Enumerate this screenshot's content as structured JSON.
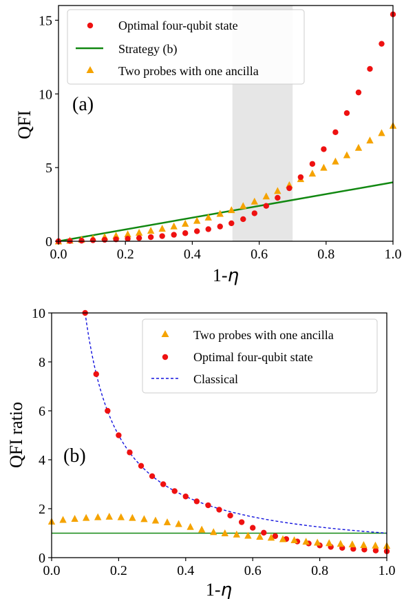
{
  "chart_data": [
    {
      "type": "scatter",
      "panel_label": "(a)",
      "xlabel": "1-η",
      "xlabel_parts": [
        "1-",
        "η"
      ],
      "ylabel": "QFI",
      "xlim": [
        0.0,
        1.0
      ],
      "ylim": [
        0,
        16
      ],
      "xticks": [
        "0.0",
        "0.2",
        "0.4",
        "0.6",
        "0.8",
        "1.0"
      ],
      "xtick_values": [
        0.0,
        0.2,
        0.4,
        0.6,
        0.8,
        1.0
      ],
      "yticks": [
        "0",
        "5",
        "10",
        "15"
      ],
      "ytick_values": [
        0,
        5,
        10,
        15
      ],
      "grid": false,
      "legend_position": "top-left",
      "shaded_region": {
        "x": [
          0.52,
          0.7
        ],
        "color": "#e6e6e6"
      },
      "series": [
        {
          "name": "Optimal four-qubit state",
          "marker": "circle",
          "color": "#ee1111",
          "x": [
            0.0,
            0.034,
            0.069,
            0.103,
            0.138,
            0.172,
            0.207,
            0.241,
            0.276,
            0.31,
            0.345,
            0.379,
            0.414,
            0.448,
            0.483,
            0.517,
            0.552,
            0.586,
            0.621,
            0.655,
            0.69,
            0.724,
            0.759,
            0.793,
            0.828,
            0.862,
            0.897,
            0.931,
            0.966,
            1.0
          ],
          "y": [
            0.0,
            0.02,
            0.04,
            0.07,
            0.1,
            0.13,
            0.17,
            0.22,
            0.28,
            0.35,
            0.44,
            0.55,
            0.68,
            0.82,
            1.0,
            1.22,
            1.5,
            1.9,
            2.4,
            2.95,
            3.6,
            4.35,
            5.25,
            6.25,
            7.4,
            8.7,
            10.1,
            11.7,
            13.4,
            15.4
          ]
        },
        {
          "name": "Strategy (b)",
          "marker": "line",
          "color": "#118811",
          "x": [
            0.0,
            1.0
          ],
          "y": [
            0.0,
            4.0
          ]
        },
        {
          "name": "Two probes with one ancilla",
          "marker": "triangle",
          "color": "#f5a300",
          "x": [
            0.0,
            0.034,
            0.069,
            0.103,
            0.138,
            0.172,
            0.207,
            0.241,
            0.276,
            0.31,
            0.345,
            0.379,
            0.414,
            0.448,
            0.483,
            0.517,
            0.552,
            0.586,
            0.621,
            0.655,
            0.69,
            0.724,
            0.759,
            0.793,
            0.828,
            0.862,
            0.897,
            0.931,
            0.966,
            1.0
          ],
          "y": [
            0.0,
            0.05,
            0.12,
            0.2,
            0.29,
            0.38,
            0.48,
            0.59,
            0.72,
            0.86,
            1.02,
            1.2,
            1.4,
            1.62,
            1.87,
            2.12,
            2.4,
            2.7,
            3.05,
            3.42,
            3.82,
            4.23,
            4.6,
            5.0,
            5.42,
            5.85,
            6.35,
            6.85,
            7.35,
            7.85
          ]
        }
      ]
    },
    {
      "type": "scatter",
      "panel_label": "(b)",
      "xlabel": "1-η",
      "xlabel_parts": [
        "1-",
        "η"
      ],
      "ylabel": "QFI ratio",
      "xlim": [
        0.0,
        1.0
      ],
      "ylim": [
        0,
        10
      ],
      "xticks": [
        "0.0",
        "0.2",
        "0.4",
        "0.6",
        "0.8",
        "1.0"
      ],
      "xtick_values": [
        0.0,
        0.2,
        0.4,
        0.6,
        0.8,
        1.0
      ],
      "yticks": [
        "0",
        "2",
        "4",
        "6",
        "8",
        "10"
      ],
      "ytick_values": [
        0,
        2,
        4,
        6,
        8,
        10
      ],
      "grid": false,
      "legend_position": "top-right",
      "reference_line": {
        "y": 1.0,
        "color": "#118811"
      },
      "series": [
        {
          "name": "Two probes with one ancilla",
          "marker": "triangle",
          "color": "#f5a300",
          "x": [
            0.0,
            0.034,
            0.069,
            0.103,
            0.138,
            0.172,
            0.207,
            0.241,
            0.276,
            0.31,
            0.345,
            0.379,
            0.414,
            0.448,
            0.483,
            0.517,
            0.552,
            0.586,
            0.621,
            0.655,
            0.69,
            0.724,
            0.759,
            0.793,
            0.828,
            0.862,
            0.897,
            0.931,
            0.966,
            1.0
          ],
          "y": [
            1.48,
            1.55,
            1.59,
            1.63,
            1.66,
            1.68,
            1.66,
            1.63,
            1.58,
            1.52,
            1.45,
            1.38,
            1.26,
            1.15,
            1.05,
            1.0,
            0.95,
            0.9,
            0.86,
            0.82,
            0.76,
            0.72,
            0.66,
            0.62,
            0.6,
            0.57,
            0.55,
            0.52,
            0.5,
            0.49
          ]
        },
        {
          "name": "Optimal four-qubit state",
          "marker": "circle",
          "color": "#ee1111",
          "x": [
            0.1,
            0.133,
            0.167,
            0.2,
            0.233,
            0.267,
            0.3,
            0.333,
            0.367,
            0.4,
            0.433,
            0.467,
            0.5,
            0.533,
            0.567,
            0.6,
            0.633,
            0.667,
            0.7,
            0.733,
            0.767,
            0.8,
            0.833,
            0.867,
            0.9,
            0.933,
            0.967,
            1.0
          ],
          "y": [
            10.0,
            7.5,
            6.0,
            5.0,
            4.3,
            3.75,
            3.33,
            3.0,
            2.72,
            2.5,
            2.3,
            2.14,
            1.96,
            1.72,
            1.45,
            1.22,
            1.02,
            0.88,
            0.76,
            0.66,
            0.58,
            0.5,
            0.44,
            0.4,
            0.36,
            0.33,
            0.29,
            0.26
          ]
        },
        {
          "name": "Classical",
          "marker": "dashed-line",
          "color": "#1111dd",
          "function": "1/x"
        }
      ]
    }
  ]
}
